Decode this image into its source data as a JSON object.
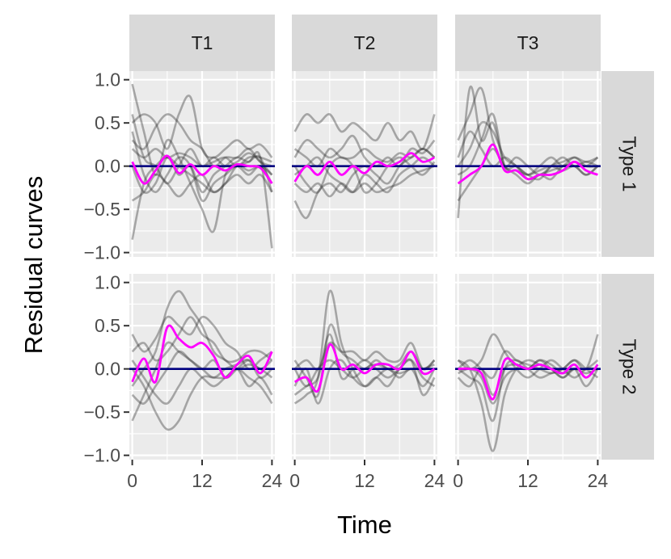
{
  "chart_data": {
    "type": "line",
    "title": "",
    "xlabel": "Time",
    "ylabel": "Residual curves",
    "xlim": [
      -0.5,
      24.5
    ],
    "ylim": [
      -1.05,
      1.1
    ],
    "x_ticks": [
      0,
      12,
      24
    ],
    "y_ticks": [
      -1.0,
      -0.5,
      0.0,
      0.5,
      1.0
    ],
    "y_tick_labels": [
      "−1.0",
      "−0.5",
      "0.0",
      "0.5",
      "1.0"
    ],
    "facet_cols": [
      "T1",
      "T2",
      "T3"
    ],
    "facet_rows": [
      "Type 1",
      "Type 2"
    ],
    "colors": {
      "panel_bg": "#ebebeb",
      "grid": "#ffffff",
      "strip_bg": "#d9d9d9",
      "individual": "#333333",
      "mean": "#ff00ff",
      "reference": "#000080"
    },
    "reference_line": 0,
    "x": [
      0,
      2,
      4,
      6,
      8,
      10,
      12,
      14,
      16,
      18,
      20,
      22,
      24
    ],
    "panels": [
      {
        "row": "Type 1",
        "col": "T1",
        "mean": [
          0.05,
          -0.2,
          -0.05,
          0.12,
          -0.08,
          0.02,
          -0.1,
          0.0,
          -0.05,
          0.02,
          0.0,
          -0.02,
          -0.2
        ],
        "curves": [
          [
            0.95,
            0.4,
            -0.1,
            0.3,
            0.1,
            -0.2,
            -0.5,
            -0.75,
            -0.1,
            0.0,
            0.05,
            0.1,
            -0.3
          ],
          [
            0.5,
            0.6,
            0.5,
            0.2,
            0.6,
            0.8,
            0.2,
            0.1,
            0.2,
            0.3,
            0.2,
            0.25,
            0.1
          ],
          [
            -0.85,
            -0.2,
            0.0,
            0.1,
            0.0,
            -0.1,
            -0.2,
            -0.3,
            -0.2,
            0.0,
            -0.05,
            0.0,
            -0.1
          ],
          [
            0.3,
            0.2,
            0.45,
            0.6,
            0.5,
            0.3,
            0.2,
            0.0,
            0.1,
            0.1,
            0.2,
            0.05,
            0.0
          ],
          [
            0.0,
            -0.3,
            -0.2,
            0.1,
            -0.1,
            0.0,
            -0.3,
            -0.1,
            0.0,
            0.1,
            0.05,
            0.1,
            -0.95
          ],
          [
            0.6,
            0.1,
            0.0,
            -0.2,
            0.0,
            0.2,
            0.0,
            0.1,
            0.0,
            0.05,
            0.15,
            0.05,
            -0.1
          ],
          [
            -0.4,
            -0.3,
            -0.1,
            -0.2,
            -0.35,
            -0.2,
            -0.1,
            -0.3,
            -0.2,
            -0.1,
            -0.2,
            -0.1,
            -0.3
          ],
          [
            0.2,
            0.1,
            0.2,
            0.1,
            0.15,
            0.1,
            0.0,
            0.05,
            0.1,
            0.0,
            0.1,
            0.1,
            0.05
          ],
          [
            0.4,
            -0.1,
            -0.3,
            -0.1,
            0.1,
            0.0,
            -0.4,
            -0.2,
            -0.1,
            0.0,
            -0.1,
            0.0,
            -0.2
          ]
        ]
      },
      {
        "row": "Type 1",
        "col": "T2",
        "mean": [
          -0.18,
          0.0,
          -0.1,
          0.05,
          -0.1,
          0.0,
          -0.08,
          0.05,
          0.0,
          0.05,
          0.15,
          0.05,
          0.1
        ],
        "curves": [
          [
            0.4,
            0.6,
            0.5,
            0.6,
            0.4,
            0.5,
            0.4,
            0.3,
            0.5,
            0.3,
            0.4,
            0.2,
            0.6
          ],
          [
            -0.4,
            -0.6,
            -0.3,
            -0.2,
            -0.3,
            -0.1,
            0.0,
            -0.1,
            -0.2,
            0.0,
            0.1,
            0.2,
            0.1
          ],
          [
            0.1,
            0.3,
            0.2,
            0.1,
            0.2,
            0.35,
            0.1,
            0.0,
            0.1,
            0.0,
            0.2,
            0.15,
            0.3
          ],
          [
            -0.1,
            0.0,
            0.1,
            -0.1,
            -0.2,
            -0.3,
            -0.1,
            -0.2,
            -0.3,
            -0.1,
            0.0,
            0.1,
            0.0
          ],
          [
            0.0,
            -0.2,
            -0.3,
            0.0,
            0.1,
            0.0,
            -0.3,
            -0.2,
            0.0,
            0.1,
            0.0,
            -0.1,
            0.05
          ],
          [
            -0.2,
            -0.3,
            -0.2,
            -0.35,
            -0.2,
            -0.3,
            -0.2,
            -0.3,
            -0.25,
            -0.2,
            -0.1,
            -0.05,
            0.0
          ],
          [
            0.2,
            0.1,
            0.0,
            0.2,
            0.1,
            0.1,
            0.2,
            0.1,
            0.05,
            0.15,
            0.1,
            0.2,
            0.1
          ]
        ]
      },
      {
        "row": "Type 1",
        "col": "T3",
        "mean": [
          -0.2,
          -0.1,
          0.0,
          0.25,
          -0.05,
          -0.05,
          -0.15,
          -0.1,
          -0.1,
          -0.05,
          0.05,
          -0.05,
          -0.1
        ],
        "curves": [
          [
            -0.6,
            0.9,
            0.3,
            0.5,
            0.0,
            0.0,
            -0.1,
            0.0,
            0.1,
            0.0,
            0.05,
            0.0,
            0.1
          ],
          [
            0.3,
            0.6,
            0.9,
            0.3,
            0.0,
            0.1,
            0.0,
            -0.1,
            0.0,
            0.1,
            0.0,
            0.05,
            0.0
          ],
          [
            0.0,
            0.2,
            0.5,
            0.4,
            0.1,
            0.0,
            -0.15,
            -0.1,
            -0.05,
            0.0,
            0.1,
            0.0,
            0.0
          ],
          [
            -0.4,
            -0.2,
            0.0,
            0.2,
            0.0,
            -0.1,
            -0.2,
            -0.1,
            -0.15,
            0.0,
            0.0,
            -0.1,
            0.0
          ],
          [
            0.1,
            0.4,
            0.2,
            0.0,
            0.1,
            0.0,
            -0.1,
            -0.15,
            0.0,
            0.05,
            0.1,
            0.05,
            0.1
          ],
          [
            -0.1,
            0.0,
            0.3,
            0.6,
            0.0,
            -0.05,
            -0.1,
            -0.05,
            0.0,
            -0.05,
            0.0,
            -0.1,
            0.0
          ]
        ]
      },
      {
        "row": "Type 2",
        "col": "T1",
        "mean": [
          -0.15,
          0.12,
          -0.15,
          0.48,
          0.35,
          0.25,
          0.3,
          0.15,
          -0.1,
          0.05,
          0.15,
          -0.05,
          0.2
        ],
        "curves": [
          [
            -0.6,
            -0.3,
            0.0,
            0.3,
            0.2,
            0.1,
            0.0,
            -0.1,
            0.0,
            0.05,
            0.1,
            -0.1,
            0.0
          ],
          [
            0.0,
            -0.2,
            -0.5,
            -0.7,
            -0.6,
            -0.3,
            -0.1,
            -0.1,
            -0.1,
            0.0,
            -0.2,
            -0.1,
            -0.3
          ],
          [
            0.4,
            0.2,
            0.35,
            0.6,
            0.5,
            0.4,
            0.6,
            0.5,
            0.3,
            0.2,
            0.0,
            0.1,
            0.2
          ],
          [
            -0.2,
            0.0,
            0.2,
            0.7,
            0.9,
            0.7,
            0.5,
            0.2,
            0.1,
            0.0,
            0.05,
            0.0,
            -0.1
          ],
          [
            0.1,
            -0.1,
            -0.3,
            -0.4,
            -0.2,
            0.0,
            -0.1,
            -0.2,
            -0.1,
            0.0,
            -0.1,
            -0.2,
            -0.4
          ],
          [
            -0.3,
            -0.4,
            -0.2,
            0.0,
            0.2,
            0.1,
            0.0,
            0.1,
            -0.1,
            0.0,
            0.1,
            0.0,
            0.1
          ],
          [
            0.2,
            0.3,
            0.1,
            0.2,
            0.4,
            0.6,
            0.4,
            0.3,
            0.1,
            0.1,
            0.2,
            0.2,
            0.1
          ]
        ]
      },
      {
        "row": "Type 2",
        "col": "T2",
        "mean": [
          -0.15,
          -0.1,
          -0.25,
          0.28,
          0.0,
          0.05,
          -0.05,
          0.05,
          0.05,
          0.0,
          0.2,
          -0.05,
          0.0
        ],
        "curves": [
          [
            -0.4,
            -0.3,
            -0.1,
            0.9,
            0.3,
            0.0,
            -0.2,
            -0.1,
            0.0,
            -0.1,
            0.0,
            -0.2,
            0.0
          ],
          [
            0.1,
            -0.1,
            -0.3,
            0.5,
            0.2,
            0.1,
            0.0,
            0.1,
            0.0,
            0.05,
            0.2,
            0.0,
            0.1
          ],
          [
            -0.2,
            0.0,
            -0.4,
            0.0,
            0.1,
            -0.1,
            -0.2,
            -0.1,
            -0.2,
            0.0,
            0.1,
            -0.1,
            -0.2
          ],
          [
            0.0,
            0.1,
            0.0,
            0.3,
            0.2,
            0.2,
            0.1,
            0.2,
            0.1,
            0.1,
            0.3,
            0.0,
            0.1
          ],
          [
            -0.3,
            -0.2,
            -0.1,
            0.4,
            -0.1,
            0.0,
            0.1,
            0.0,
            -0.1,
            0.0,
            0.1,
            -0.3,
            -0.1
          ],
          [
            0.0,
            -0.2,
            0.0,
            0.1,
            0.0,
            -0.1,
            0.0,
            0.05,
            0.0,
            -0.05,
            0.0,
            0.0,
            0.05
          ]
        ]
      },
      {
        "row": "Type 2",
        "col": "T3",
        "mean": [
          0.0,
          0.0,
          -0.05,
          -0.35,
          0.1,
          0.05,
          0.0,
          0.05,
          0.0,
          -0.05,
          0.05,
          -0.1,
          0.05
        ],
        "curves": [
          [
            0.1,
            0.0,
            -0.4,
            -0.95,
            -0.3,
            0.0,
            0.1,
            0.05,
            0.0,
            -0.1,
            0.0,
            0.0,
            0.1
          ],
          [
            0.0,
            -0.1,
            -0.2,
            -0.6,
            0.0,
            0.1,
            0.0,
            -0.1,
            -0.05,
            0.0,
            0.1,
            0.0,
            0.4
          ],
          [
            0.1,
            0.0,
            0.1,
            0.4,
            0.2,
            0.0,
            -0.1,
            0.0,
            0.1,
            0.0,
            -0.1,
            0.0,
            0.0
          ],
          [
            -0.1,
            -0.2,
            0.0,
            -0.3,
            0.0,
            0.05,
            0.0,
            0.1,
            0.0,
            -0.1,
            0.0,
            -0.2,
            0.0
          ],
          [
            0.0,
            0.1,
            0.0,
            -0.1,
            0.2,
            0.1,
            0.05,
            0.0,
            -0.05,
            0.0,
            0.1,
            0.0,
            -0.1
          ],
          [
            -0.05,
            0.0,
            -0.1,
            -0.4,
            -0.1,
            0.0,
            0.0,
            0.1,
            0.05,
            -0.05,
            0.0,
            -0.05,
            0.0
          ]
        ]
      }
    ]
  }
}
